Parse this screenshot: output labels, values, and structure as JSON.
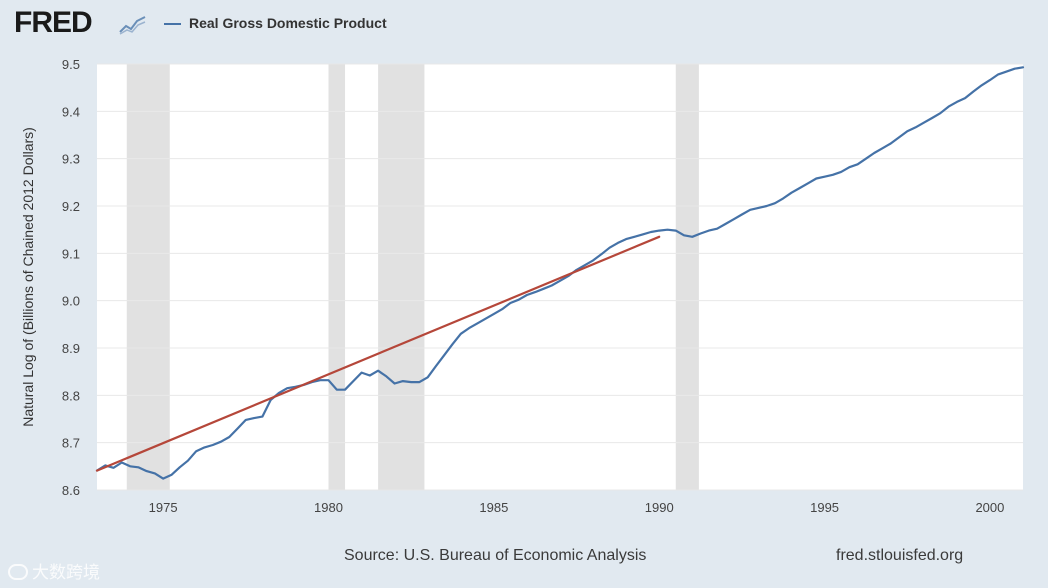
{
  "header": {
    "logo_text": "FRED",
    "legend_label": "Real Gross Domestic Product"
  },
  "footer": {
    "source": "Source: U.S. Bureau of Economic Analysis",
    "url": "fred.stlouisfed.org"
  },
  "watermark": {
    "text": "大数跨境"
  },
  "colors": {
    "background": "#e1e9f0",
    "plot_background": "#ffffff",
    "series": "#4572a7",
    "trendline": "#b5473a",
    "recession": "#e1e1e1",
    "gridline": "#e8e8e8"
  },
  "chart_data": {
    "type": "line",
    "title": "",
    "xlabel": "",
    "ylabel": "Natural Log of (Billions of Chained 2012 Dollars)",
    "xlim": [
      1973.0,
      2001.0
    ],
    "ylim": [
      8.6,
      9.5
    ],
    "x_ticks": [
      1975,
      1980,
      1985,
      1990,
      1995,
      2000
    ],
    "y_ticks": [
      8.6,
      8.7,
      8.8,
      8.9,
      9.0,
      9.1,
      9.2,
      9.3,
      9.4,
      9.5
    ],
    "y_tick_labels": [
      "8.6",
      "8.7",
      "8.8",
      "8.9",
      "9.0",
      "9.1",
      "9.2",
      "9.3",
      "9.4",
      "9.5"
    ],
    "grid": true,
    "legend_placement": "top-left",
    "recessions": [
      [
        1973.9,
        1975.2
      ],
      [
        1980.0,
        1980.5
      ],
      [
        1981.5,
        1982.9
      ],
      [
        1990.5,
        1991.2
      ]
    ],
    "series": [
      {
        "name": "Real Gross Domestic Product",
        "x": [
          1973.0,
          1973.25,
          1973.5,
          1973.75,
          1974.0,
          1974.25,
          1974.5,
          1974.75,
          1975.0,
          1975.25,
          1975.5,
          1975.75,
          1976.0,
          1976.25,
          1976.5,
          1976.75,
          1977.0,
          1977.25,
          1977.5,
          1977.75,
          1978.0,
          1978.25,
          1978.5,
          1978.75,
          1979.0,
          1979.25,
          1979.5,
          1979.75,
          1980.0,
          1980.25,
          1980.5,
          1980.75,
          1981.0,
          1981.25,
          1981.5,
          1981.75,
          1982.0,
          1982.25,
          1982.5,
          1982.75,
          1983.0,
          1983.25,
          1983.5,
          1983.75,
          1984.0,
          1984.25,
          1984.5,
          1984.75,
          1985.0,
          1985.25,
          1985.5,
          1985.75,
          1986.0,
          1986.25,
          1986.5,
          1986.75,
          1987.0,
          1987.25,
          1987.5,
          1987.75,
          1988.0,
          1988.25,
          1988.5,
          1988.75,
          1989.0,
          1989.25,
          1989.5,
          1989.75,
          1990.0,
          1990.25,
          1990.5,
          1990.75,
          1991.0,
          1991.25,
          1991.5,
          1991.75,
          1992.0,
          1992.25,
          1992.5,
          1992.75,
          1993.0,
          1993.25,
          1993.5,
          1993.75,
          1994.0,
          1994.25,
          1994.5,
          1994.75,
          1995.0,
          1995.25,
          1995.5,
          1995.75,
          1996.0,
          1996.25,
          1996.5,
          1996.75,
          1997.0,
          1997.25,
          1997.5,
          1997.75,
          1998.0,
          1998.25,
          1998.5,
          1998.75,
          1999.0,
          1999.25,
          1999.5,
          1999.75,
          2000.0,
          2000.25,
          2000.5,
          2000.75,
          2001.0
        ],
        "values": [
          8.641,
          8.652,
          8.647,
          8.658,
          8.65,
          8.648,
          8.64,
          8.635,
          8.624,
          8.632,
          8.648,
          8.662,
          8.682,
          8.69,
          8.695,
          8.702,
          8.712,
          8.73,
          8.748,
          8.752,
          8.755,
          8.79,
          8.805,
          8.815,
          8.818,
          8.822,
          8.828,
          8.832,
          8.832,
          8.812,
          8.812,
          8.83,
          8.848,
          8.842,
          8.852,
          8.84,
          8.825,
          8.83,
          8.828,
          8.828,
          8.838,
          8.862,
          8.885,
          8.908,
          8.93,
          8.942,
          8.952,
          8.962,
          8.972,
          8.982,
          8.995,
          9.002,
          9.012,
          9.018,
          9.025,
          9.032,
          9.042,
          9.052,
          9.065,
          9.075,
          9.085,
          9.098,
          9.112,
          9.122,
          9.13,
          9.135,
          9.14,
          9.145,
          9.148,
          9.15,
          9.148,
          9.138,
          9.135,
          9.142,
          9.148,
          9.152,
          9.162,
          9.172,
          9.182,
          9.192,
          9.196,
          9.2,
          9.206,
          9.216,
          9.228,
          9.238,
          9.248,
          9.258,
          9.262,
          9.266,
          9.272,
          9.282,
          9.288,
          9.3,
          9.312,
          9.322,
          9.332,
          9.345,
          9.358,
          9.366,
          9.376,
          9.386,
          9.396,
          9.41,
          9.42,
          9.428,
          9.442,
          9.455,
          9.466,
          9.478,
          9.484,
          9.49,
          9.493
        ]
      },
      {
        "name": "",
        "style": "trendline",
        "x": [
          1973.0,
          1990.0
        ],
        "values": [
          8.641,
          9.135
        ]
      }
    ]
  }
}
